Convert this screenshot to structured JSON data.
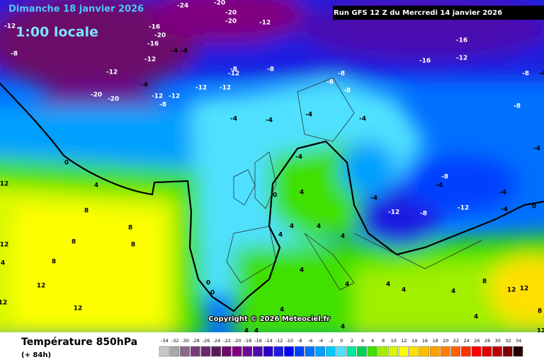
{
  "header": {
    "title": "Dimanche 18 janvier 2026",
    "subtitle": "1:00 locale",
    "run": "Run GFS 12 Z du Mercredi 14 janvier 2026"
  },
  "copyright": "Copyright © 2026 Meteociel.fr",
  "footer": {
    "variable": "Température 850hPa",
    "lead": "(+ 84h)"
  },
  "colorbar": {
    "values": [
      -34,
      -32,
      -30,
      -28,
      -26,
      -24,
      -22,
      -20,
      -18,
      -16,
      -14,
      -12,
      -10,
      -8,
      -6,
      -4,
      -2,
      0,
      2,
      4,
      6,
      8,
      10,
      12,
      14,
      16,
      18,
      20,
      22,
      24,
      26,
      28,
      30,
      32,
      34
    ],
    "colors": [
      "#c8c8c8",
      "#a8a8a8",
      "#8c6a8c",
      "#7a3a7a",
      "#6a2a6a",
      "#5a1a5a",
      "#6e0a6e",
      "#800080",
      "#6a0a9a",
      "#4a0ab0",
      "#2a00c8",
      "#1a1ae0",
      "#0000ff",
      "#0040ff",
      "#0070ff",
      "#00a0ff",
      "#00c8ff",
      "#50e0ff",
      "#00e8a0",
      "#00d050",
      "#40e000",
      "#a0f000",
      "#d8f800",
      "#ffff00",
      "#ffe000",
      "#ffc000",
      "#ffa000",
      "#ff8000",
      "#ff6000",
      "#ff3000",
      "#ff0000",
      "#e00000",
      "#c00000",
      "#800000",
      "#200000"
    ]
  },
  "map_labels": [
    -12,
    -8,
    -16,
    -20,
    -24,
    -20,
    -20,
    -20,
    -12,
    -16,
    -4,
    -4,
    -12,
    -12,
    -20,
    -20,
    -4,
    -12,
    -12,
    -8,
    -12,
    -12,
    -8,
    -12,
    -8,
    -8,
    -8,
    -8,
    -16,
    -12,
    -16,
    -8,
    -4,
    -8,
    -4,
    -4,
    -4,
    -4,
    -4,
    -4,
    0,
    4,
    0,
    4,
    -4,
    -8,
    -4,
    -12,
    -8,
    -12,
    -4,
    -4,
    12,
    8,
    8,
    8,
    8,
    12,
    8,
    4,
    12,
    12,
    12,
    0,
    0,
    4,
    4,
    4,
    4,
    4,
    4,
    4,
    4,
    4,
    4,
    8,
    12,
    12,
    8,
    12,
    4,
    4,
    0,
    4,
    4
  ]
}
